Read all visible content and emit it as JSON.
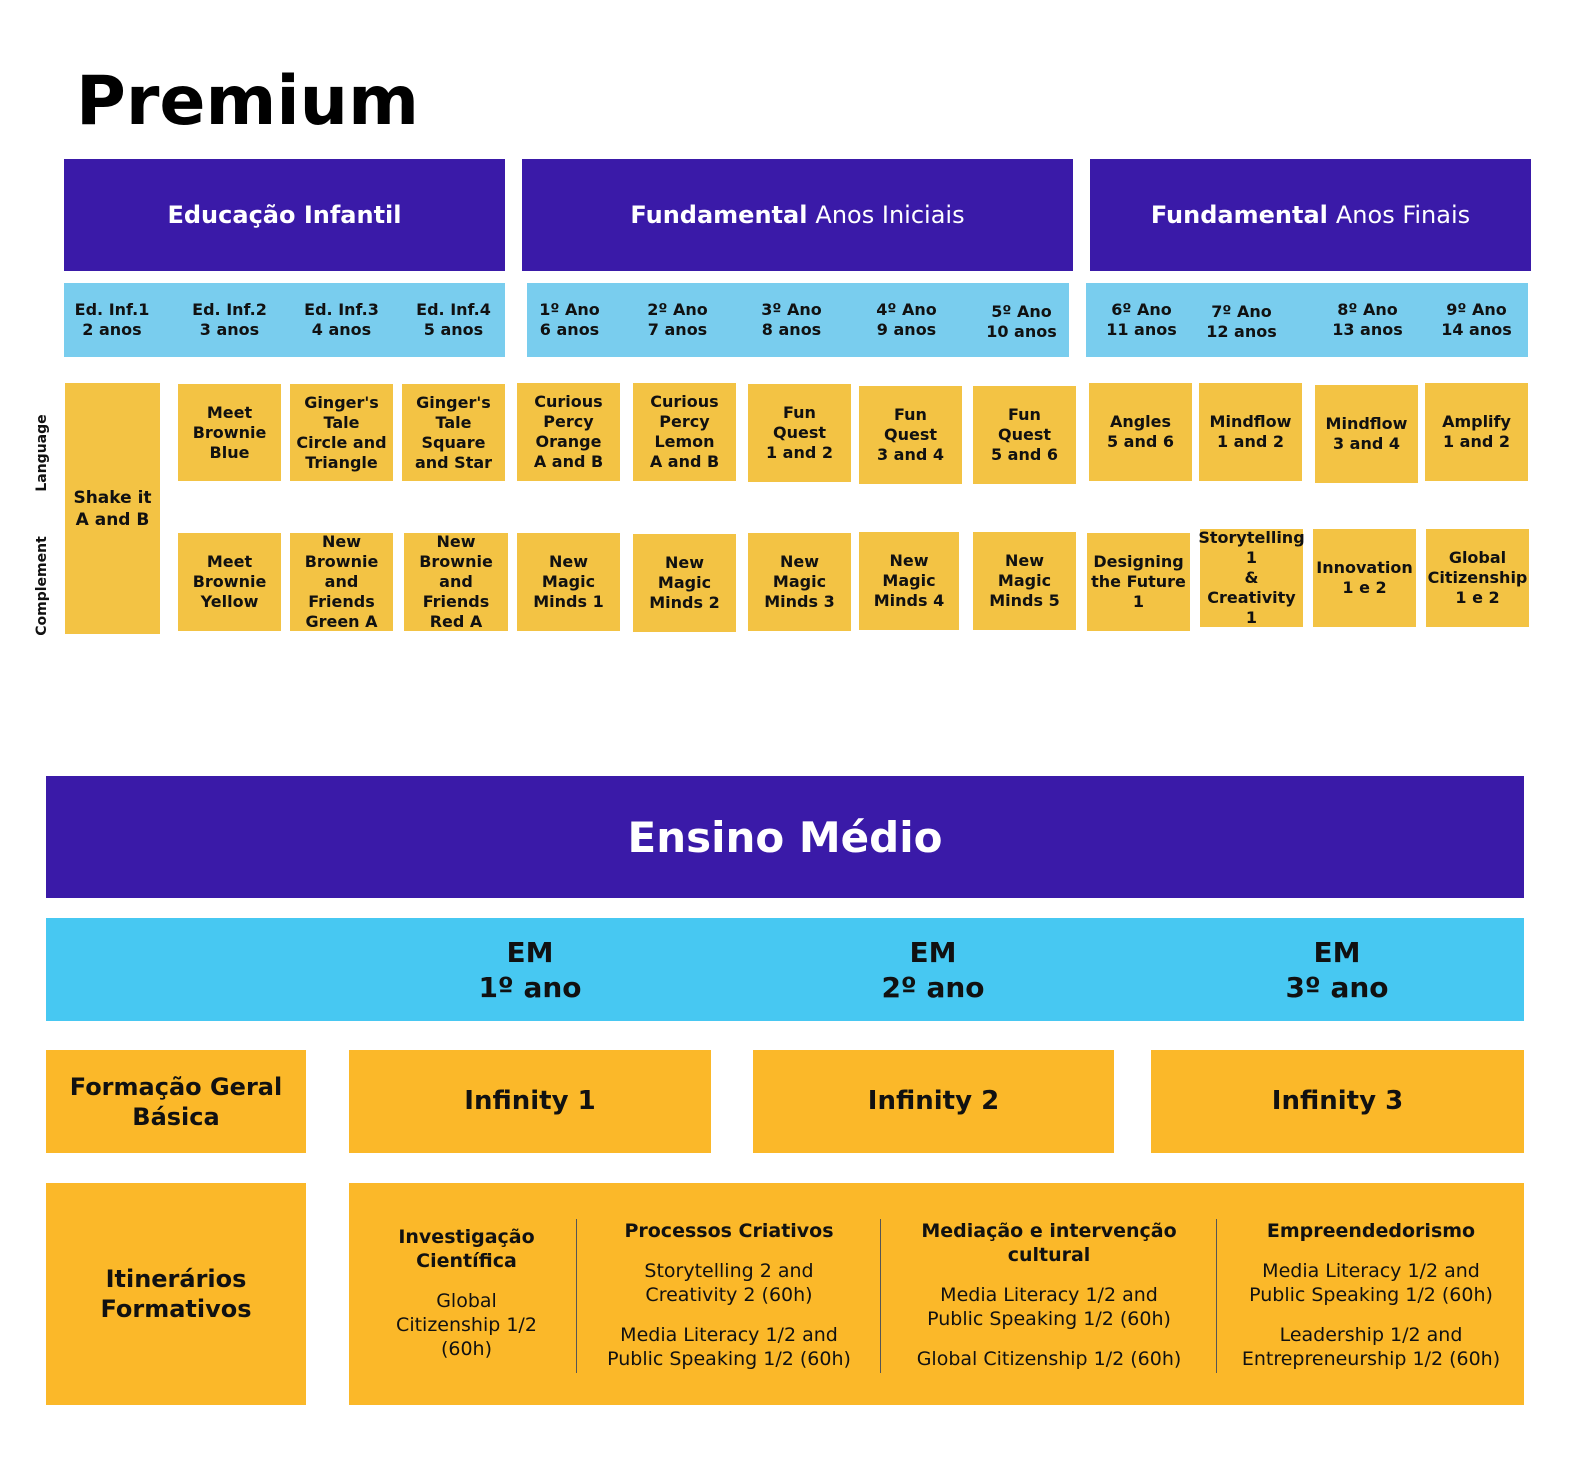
{
  "title": "Premium",
  "top_headers": [
    {
      "bold": "Educação Infantil",
      "regular": ""
    },
    {
      "bold": "Fundamental",
      "regular": "Anos Iniciais"
    },
    {
      "bold": "Fundamental",
      "regular": "Anos Finais"
    }
  ],
  "grades": [
    "Ed. Inf.1\n2 anos",
    "Ed. Inf.2\n3 anos",
    "Ed. Inf.3\n4 anos",
    "Ed. Inf.4\n5 anos",
    "1º Ano\n6 anos",
    "2º Ano\n7 anos",
    "3º Ano\n8 anos",
    "4º Ano\n9 anos",
    "5º Ano\n10 anos",
    "6º Ano\n11 anos",
    "7º Ano\n12 anos",
    "8º Ano\n13 anos",
    "9º Ano\n14 anos"
  ],
  "row_labels": {
    "language": "Language",
    "complement": "Complement"
  },
  "shake": "Shake it\nA and B",
  "language": [
    "Meet\nBrownie\nBlue",
    "Ginger's\nTale\nCircle and\nTriangle",
    "Ginger's\nTale\nSquare\nand Star",
    "Curious\nPercy\nOrange\nA and B",
    "Curious\nPercy\nLemon\nA and B",
    "Fun\nQuest\n1 and 2",
    "Fun\nQuest\n3 and 4",
    "Fun\nQuest\n5 and 6",
    "Angles\n5 and 6",
    "Mindflow\n1 and 2",
    "Mindflow\n3 and 4",
    "Amplify\n1 and 2"
  ],
  "complement": [
    "Meet\nBrownie\nYellow",
    "New\nBrownie\nand Friends\nGreen A",
    "New\nBrownie\nand Friends\nRed A",
    "New\nMagic\nMinds 1",
    "New\nMagic\nMinds 2",
    "New\nMagic\nMinds 3",
    "New\nMagic\nMinds 4",
    "New\nMagic\nMinds 5",
    "Designing\nthe Future 1",
    "Storytelling\n1\n& Creativity\n1",
    "Innovation\n1 e 2",
    "Global\nCitizenship\n1 e 2"
  ],
  "em": {
    "title": "Ensino Médio",
    "years": [
      "EM\n1º ano",
      "EM\n2º ano",
      "EM\n3º ano"
    ],
    "fgb": "Formação Geral\nBásica",
    "infinity": [
      "Infinity 1",
      "Infinity 2",
      "Infinity 3"
    ],
    "itinerarios": "Itinerários\nFormativos",
    "tracks": [
      {
        "title": "Investigação\nCientífica",
        "items": [
          "Global\nCitizenship 1/2\n(60h)"
        ]
      },
      {
        "title": "Processos Criativos",
        "items": [
          "Storytelling 2 and\nCreativity 2 (60h)",
          "Media Literacy 1/2 and\nPublic Speaking 1/2 (60h)"
        ]
      },
      {
        "title": "Mediação e intervenção\ncultural",
        "items": [
          "Media Literacy 1/2 and\nPublic Speaking 1/2 (60h)",
          "Global Citizenship 1/2 (60h)"
        ]
      },
      {
        "title": "Empreendedorismo",
        "items": [
          "Media Literacy 1/2 and\nPublic Speaking 1/2 (60h)",
          "Leadership 1/2 and\nEntrepreneurship 1/2 (60h)"
        ]
      }
    ]
  }
}
